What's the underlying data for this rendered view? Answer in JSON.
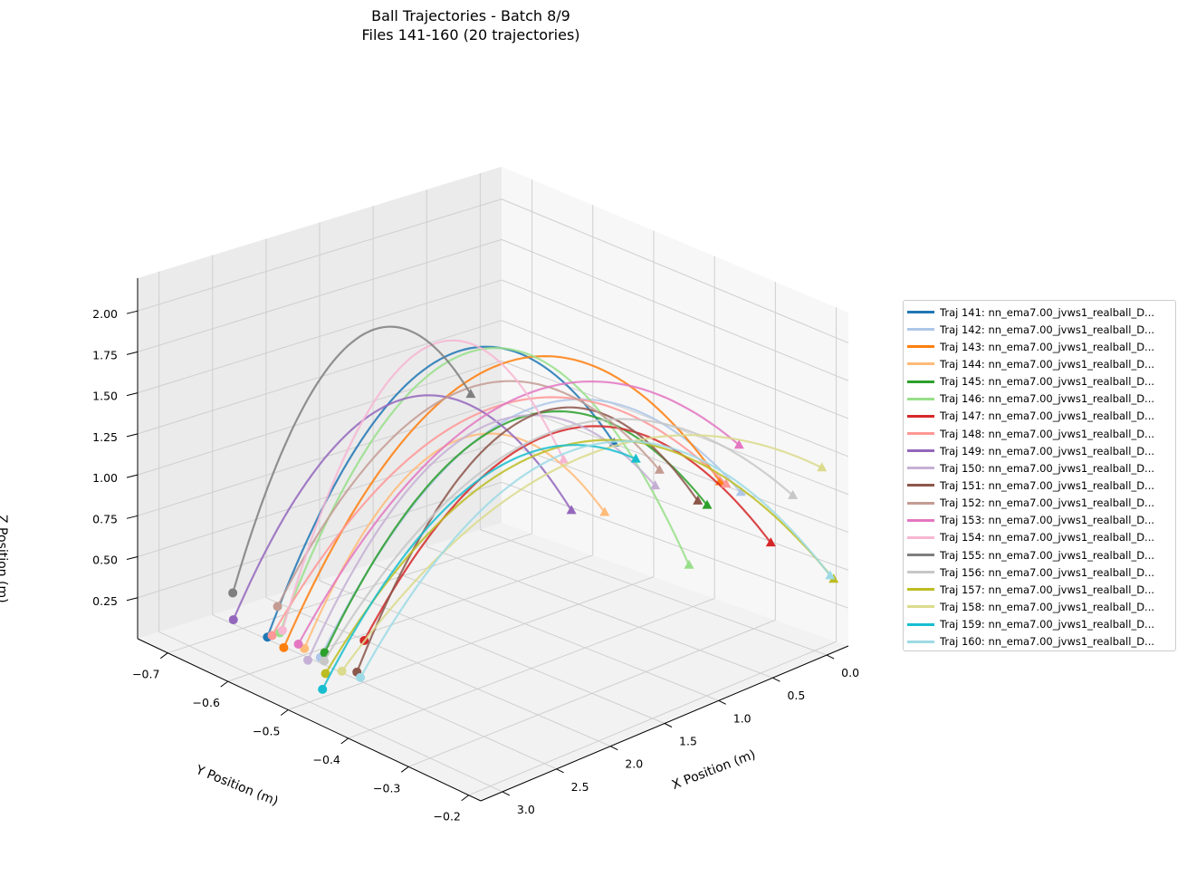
{
  "chart_data": {
    "type": "line-3d",
    "title": "Ball Trajectories - Batch 8/9",
    "subtitle": "Files 141-160 (20 trajectories)",
    "xlabel": "X Position (m)",
    "ylabel": "Y Position (m)",
    "zlabel": "Z Position (m)",
    "xlim": [
      -0.2,
      3.2
    ],
    "ylim": [
      -0.75,
      -0.18
    ],
    "zlim": [
      0.0,
      2.2
    ],
    "x_ticks": [
      "0.0",
      "0.5",
      "1.0",
      "1.5",
      "2.0",
      "2.5",
      "3.0"
    ],
    "y_ticks": [
      "−0.7",
      "−0.6",
      "−0.5",
      "−0.4",
      "−0.3",
      "−0.2"
    ],
    "z_ticks": [
      "0.25",
      "0.50",
      "0.75",
      "1.00",
      "1.25",
      "1.50",
      "1.75",
      "2.00"
    ],
    "grid": true,
    "legend_position": "right",
    "start_marker": "circle",
    "end_marker": "triangle",
    "series": [
      {
        "label": "Traj 141: nn_ema7.00_jvws1_realball_D...",
        "color": "#1f77b4",
        "start": [
          2.72,
          -0.62,
          0.13
        ],
        "peak_z": 1.86,
        "end": [
          0.62,
          -0.42,
          1.18
        ]
      },
      {
        "label": "Traj 142: nn_ema7.00_jvws1_realball_D...",
        "color": "#aec7e8",
        "start": [
          2.62,
          -0.55,
          0.1
        ],
        "peak_z": 1.62,
        "end": [
          0.12,
          -0.3,
          0.92
        ]
      },
      {
        "label": "Traj 143: nn_ema7.00_jvws1_realball_D...",
        "color": "#ff7f0e",
        "start": [
          2.68,
          -0.6,
          0.09
        ],
        "peak_z": 1.86,
        "end": [
          0.2,
          -0.32,
          0.98
        ]
      },
      {
        "label": "Traj 144: nn_ema7.00_jvws1_realball_D...",
        "color": "#ffbb78",
        "start": [
          2.6,
          -0.58,
          0.1
        ],
        "peak_z": 1.38,
        "end": [
          0.82,
          -0.4,
          0.82
        ]
      },
      {
        "label": "Traj 145: nn_ema7.00_jvws1_realball_D...",
        "color": "#2ca02c",
        "start": [
          2.58,
          -0.55,
          0.12
        ],
        "peak_z": 1.55,
        "end": [
          0.32,
          -0.32,
          0.86
        ]
      },
      {
        "label": "Traj 146: nn_ema7.00_jvws1_realball_D...",
        "color": "#98df8a",
        "start": [
          2.66,
          -0.61,
          0.16
        ],
        "peak_z": 1.98,
        "end": [
          0.6,
          -0.3,
          0.58
        ]
      },
      {
        "label": "Traj 147: nn_ema7.00_jvws1_realball_D...",
        "color": "#d62728",
        "start": [
          2.38,
          -0.52,
          0.2
        ],
        "peak_z": 1.52,
        "end": [
          0.18,
          -0.24,
          0.7
        ]
      },
      {
        "label": "Traj 148: nn_ema7.00_jvws1_realball_D...",
        "color": "#ff9896",
        "start": [
          2.62,
          -0.63,
          0.1
        ],
        "peak_z": 1.58,
        "end": [
          0.2,
          -0.31,
          0.98
        ]
      },
      {
        "label": "Traj 149: nn_ema7.00_jvws1_realball_D...",
        "color": "#9467bd",
        "start": [
          2.7,
          -0.68,
          0.13
        ],
        "peak_z": 1.55,
        "end": [
          0.96,
          -0.43,
          0.82
        ]
      },
      {
        "label": "Traj 150: nn_ema7.00_jvws1_realball_D...",
        "color": "#c5b0d5",
        "start": [
          2.68,
          -0.56,
          0.08
        ],
        "peak_z": 1.5,
        "end": [
          0.52,
          -0.37,
          0.96
        ]
      },
      {
        "label": "Traj 151: nn_ema7.00_jvws1_realball_D...",
        "color": "#8c564b",
        "start": [
          2.56,
          -0.5,
          0.08
        ],
        "peak_z": 1.6,
        "end": [
          0.35,
          -0.33,
          0.88
        ]
      },
      {
        "label": "Traj 152: nn_ema7.00_jvws1_realball_D...",
        "color": "#c49c94",
        "start": [
          2.4,
          -0.66,
          0.18
        ],
        "peak_z": 1.62,
        "end": [
          0.48,
          -0.37,
          1.05
        ]
      },
      {
        "label": "Traj 153: nn_ema7.00_jvws1_realball_D...",
        "color": "#e377c2",
        "start": [
          2.6,
          -0.59,
          0.11
        ],
        "peak_z": 1.68,
        "end": [
          0.08,
          -0.31,
          1.2
        ]
      },
      {
        "label": "Traj 154: nn_ema7.00_jvws1_realball_D...",
        "color": "#f7b6d2",
        "start": [
          2.58,
          -0.62,
          0.14
        ],
        "peak_z": 1.9,
        "end": [
          0.92,
          -0.45,
          1.1
        ]
      },
      {
        "label": "Traj 155: nn_ema7.00_jvws1_realball_D...",
        "color": "#7f7f7f",
        "start": [
          2.48,
          -0.72,
          0.18
        ],
        "peak_z": 1.84,
        "end": [
          1.22,
          -0.55,
          1.42
        ]
      },
      {
        "label": "Traj 156: nn_ema7.00_jvws1_realball_D...",
        "color": "#c7c7c7",
        "start": [
          2.64,
          -0.54,
          0.1
        ],
        "peak_z": 1.52,
        "end": [
          -0.08,
          -0.25,
          0.92
        ]
      },
      {
        "label": "Traj 157: nn_ema7.00_jvws1_realball_D...",
        "color": "#bcbd22",
        "start": [
          2.74,
          -0.52,
          0.08
        ],
        "peak_z": 1.48,
        "end": [
          -0.12,
          -0.19,
          0.45
        ]
      },
      {
        "label": "Traj 158: nn_ema7.00_jvws1_realball_D...",
        "color": "#dbdb8d",
        "start": [
          2.7,
          -0.5,
          0.12
        ],
        "peak_z": 1.44,
        "end": [
          -0.18,
          -0.22,
          1.12
        ]
      },
      {
        "label": "Traj 159: nn_ema7.00_jvws1_realball_D...",
        "color": "#17becf",
        "start": [
          2.88,
          -0.5,
          0.05
        ],
        "peak_z": 1.35,
        "end": [
          0.7,
          -0.37,
          1.18
        ]
      },
      {
        "label": "Traj 160: nn_ema7.00_jvws1_realball_D...",
        "color": "#9edae5",
        "start": [
          2.64,
          -0.48,
          0.1
        ],
        "peak_z": 1.46,
        "end": [
          -0.2,
          -0.21,
          0.42
        ]
      }
    ]
  }
}
